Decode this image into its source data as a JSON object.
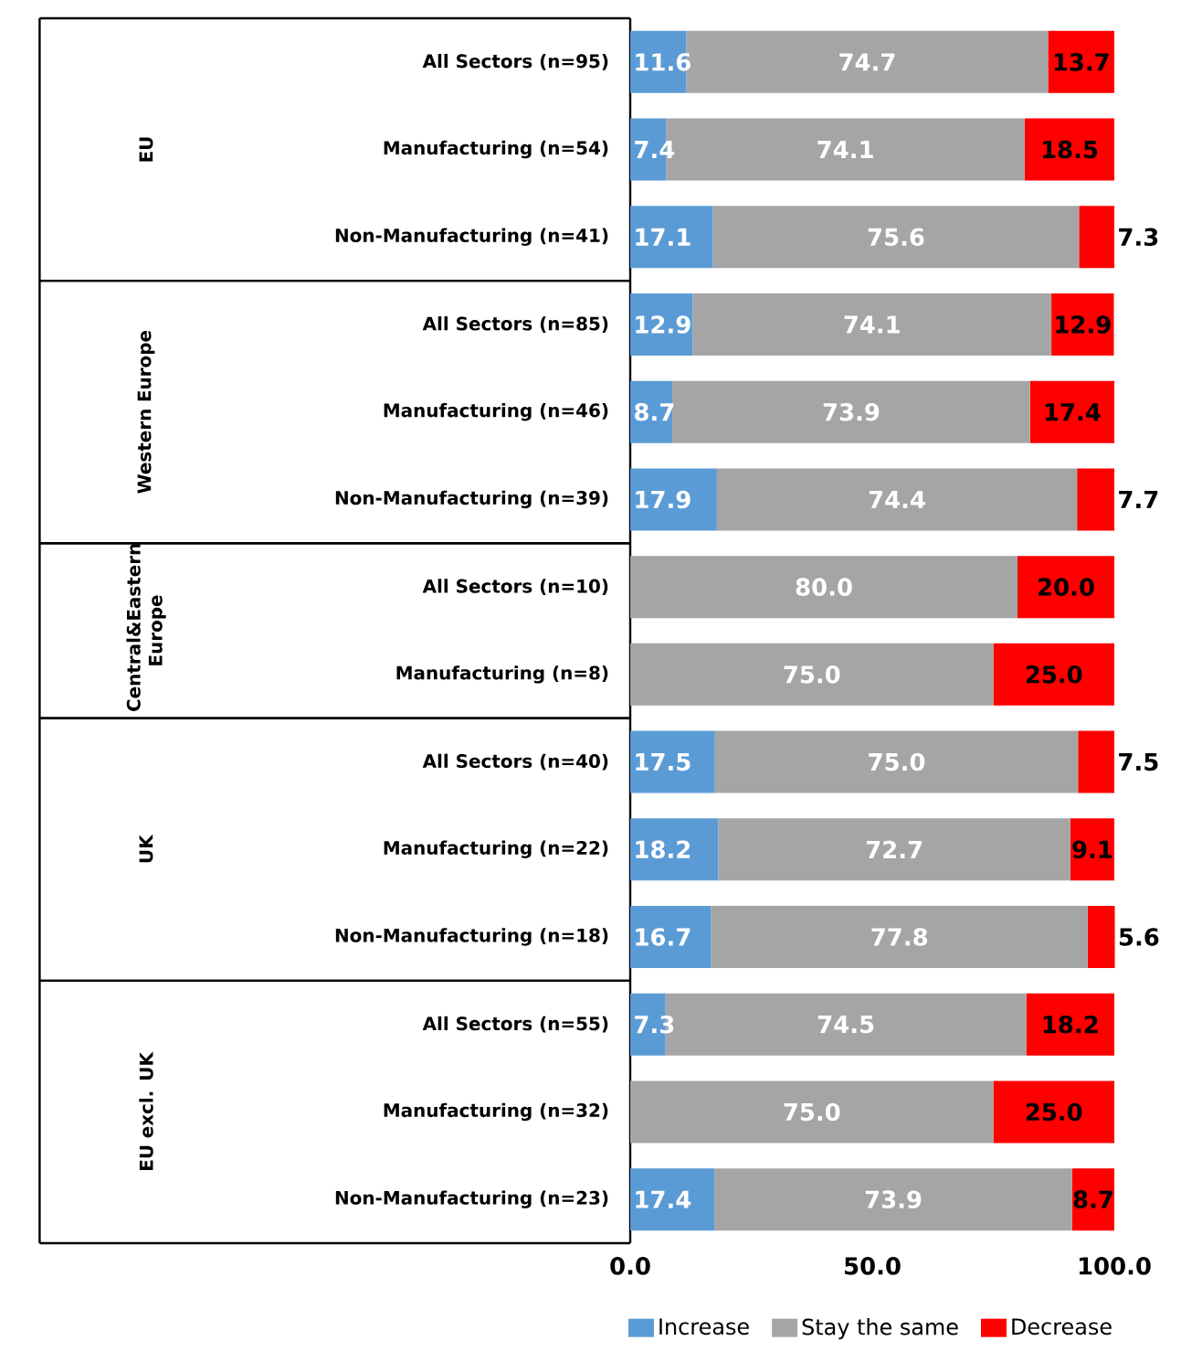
{
  "chart_data": {
    "type": "bar",
    "orientation": "horizontal",
    "stacked": true,
    "categories": [
      "All Sectors (n=95)",
      "Manufacturing (n=54)",
      "Non-Manufacturing (n=41)",
      "All Sectors (n=85)",
      "Manufacturing (n=46)",
      "Non-Manufacturing (n=39)",
      "All Sectors (n=10)",
      "Manufacturing (n=8)",
      "All Sectors (n=40)",
      "Manufacturing (n=22)",
      "Non-Manufacturing (n=18)",
      "All Sectors (n=55)",
      "Manufacturing (n=32)",
      "Non-Manufacturing (n=23)"
    ],
    "series": [
      {
        "name": "Increase",
        "color": "#5b9bd5",
        "values": [
          11.6,
          7.4,
          17.1,
          12.9,
          8.7,
          17.9,
          0,
          0,
          17.5,
          18.2,
          16.7,
          7.3,
          0,
          17.4
        ],
        "value_labels": [
          "11.6",
          "7.4",
          "17.1",
          "12.9",
          "8.7",
          "17.9",
          null,
          null,
          "17.5",
          "18.2",
          "16.7",
          "7.3",
          null,
          "17.4"
        ]
      },
      {
        "name": "Stay the same",
        "color": "#a5a5a5",
        "values": [
          74.7,
          74.1,
          75.6,
          74.1,
          73.9,
          74.4,
          80.0,
          75.0,
          75.0,
          72.7,
          77.8,
          74.5,
          75.0,
          73.9
        ],
        "value_labels": [
          "74.7",
          "74.1",
          "75.6",
          "74.1",
          "73.9",
          "74.4",
          "80.0",
          "75.0",
          "75.0",
          "72.7",
          "77.8",
          "74.5",
          "75.0",
          "73.9"
        ]
      },
      {
        "name": "Decrease",
        "color": "#ff0000",
        "values": [
          13.7,
          18.5,
          7.3,
          12.9,
          17.4,
          7.7,
          20.0,
          25.0,
          7.5,
          9.1,
          5.6,
          18.2,
          25.0,
          8.7
        ],
        "value_labels": [
          "13.7",
          "18.5",
          "7.3",
          "12.9",
          "17.4",
          "7.7",
          "20.0",
          "25.0",
          "7.5",
          "9.1",
          "5.6",
          "18.2",
          "25.0",
          "8.7"
        ]
      }
    ],
    "xlim": [
      0,
      100
    ],
    "xticks": [
      {
        "value": 0,
        "label": "0.0"
      },
      {
        "value": 50,
        "label": "50.0"
      },
      {
        "value": 100,
        "label": "100.0"
      }
    ],
    "legend": "bottom",
    "grid": false,
    "annotations": [
      "EU",
      "Western Europe",
      "Central&Eastern Europe",
      "UK",
      "EU excl. UK"
    ]
  }
}
